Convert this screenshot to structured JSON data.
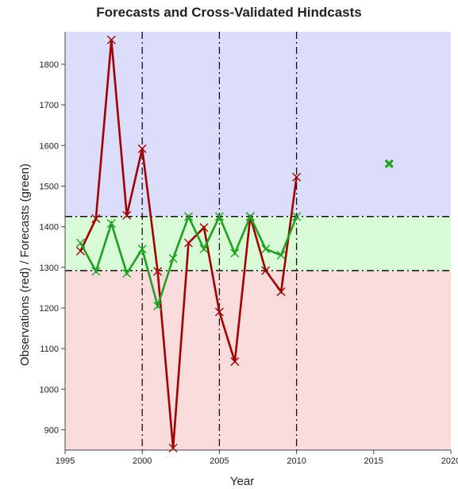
{
  "chart_data": {
    "type": "line",
    "title": "Forecasts and Cross-Validated Hindcasts",
    "xlabel": "Year",
    "ylabel": "Observations (red) / Forecasts (green)",
    "xlim": [
      1995,
      2020
    ],
    "ylim": [
      850,
      1880
    ],
    "x_ticks": [
      1995,
      2000,
      2005,
      2010,
      2015,
      2020
    ],
    "x_tick_labels": [
      "1995",
      "2000",
      "2005",
      "2010",
      "2015",
      "2020"
    ],
    "y_ticks": [
      900,
      1000,
      1100,
      1200,
      1300,
      1400,
      1500,
      1600,
      1700,
      1800
    ],
    "y_tick_labels": [
      "900",
      "1000",
      "1100",
      "1200",
      "1300",
      "1400",
      "1500",
      "1600",
      "1700",
      "1800"
    ],
    "grid": false,
    "bands": [
      {
        "from": 1425,
        "to": 1880,
        "color": "#dcdcfb"
      },
      {
        "from": 1292,
        "to": 1425,
        "color": "#dafbd7"
      },
      {
        "from": 850,
        "to": 1292,
        "color": "#fbdcdc"
      }
    ],
    "thresholds": [
      1425,
      1292
    ],
    "vertical_dashes": [
      2000,
      2005,
      2010
    ],
    "series": [
      {
        "color": "#a00000",
        "x": [
          1996,
          1997,
          1998,
          1999,
          2000,
          2001,
          2002,
          2003,
          2004,
          2005,
          2006,
          2007,
          2008,
          2009,
          2010
        ],
        "values": [
          1340,
          1420,
          1860,
          1428,
          1592,
          1290,
          855,
          1360,
          1398,
          1190,
          1068,
          1425,
          1292,
          1240,
          1522
        ]
      },
      {
        "color": "#1fa01f",
        "x": [
          1996,
          1997,
          1998,
          1999,
          2000,
          2001,
          2002,
          2003,
          2004,
          2005,
          2006,
          2007,
          2008,
          2009,
          2010
        ],
        "values": [
          1360,
          1290,
          1408,
          1285,
          1345,
          1205,
          1322,
          1425,
          1345,
          1425,
          1335,
          1425,
          1345,
          1330,
          1425
        ]
      }
    ],
    "forecast_point": {
      "x": 2016,
      "y": 1555,
      "color": "#1fa01f"
    }
  }
}
